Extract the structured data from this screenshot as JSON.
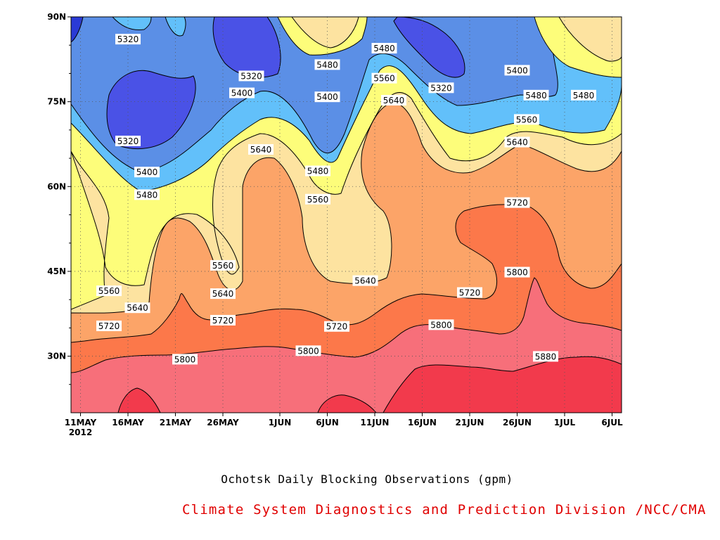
{
  "chart_data": {
    "type": "heatmap",
    "title": "Ochotsk Daily Blocking Observations (gpm)",
    "subtitle": "",
    "xlabel": "",
    "ylabel": "",
    "x_tick_labels": [
      "11MAY",
      "16MAY",
      "21MAY",
      "26MAY",
      "1JUN",
      "6JUN",
      "11JUN",
      "16JUN",
      "21JUN",
      "26JUN",
      "1JUL",
      "6JUL"
    ],
    "x_year_label": "2012",
    "x_range": [
      "2012-05-10",
      "2012-07-07"
    ],
    "y_tick_labels": [
      "30N",
      "45N",
      "60N",
      "75N",
      "90N"
    ],
    "y_range": [
      20,
      90
    ],
    "contour_levels": [
      5320,
      5400,
      5480,
      5560,
      5640,
      5720,
      5800,
      5880
    ],
    "fill_colors": {
      "below_5320": "#4a52e6",
      "5320_5400": "#5b8fe6",
      "5400_5480": "#62c0fa",
      "5480_5560": "#fdfd7a",
      "5560_5640": "#fde3a0",
      "5640_5720": "#fca468",
      "5720_5800": "#fc784a",
      "5800_5880": "#f76f7a",
      "above_5880": "#f23a4c",
      "top_left_corner": "#2a3ad6"
    },
    "contour_labels": [
      {
        "text": "5320",
        "date": "2012-05-16",
        "lat": 86
      },
      {
        "text": "5320",
        "date": "2012-05-16",
        "lat": 68
      },
      {
        "text": "5400",
        "date": "2012-05-18",
        "lat": 62.5
      },
      {
        "text": "5480",
        "date": "2012-05-18",
        "lat": 58.5
      },
      {
        "text": "5560",
        "date": "2012-05-14",
        "lat": 41.5
      },
      {
        "text": "5640",
        "date": "2012-05-17",
        "lat": 38.5
      },
      {
        "text": "5720",
        "date": "2012-05-14",
        "lat": 35.3
      },
      {
        "text": "5800",
        "date": "2012-05-22",
        "lat": 29.4
      },
      {
        "text": "5560",
        "date": "2012-05-26",
        "lat": 46
      },
      {
        "text": "5640",
        "date": "2012-05-26",
        "lat": 41
      },
      {
        "text": "5720",
        "date": "2012-05-26",
        "lat": 36.3
      },
      {
        "text": "5320",
        "date": "2012-05-29",
        "lat": 79.5
      },
      {
        "text": "5400",
        "date": "2012-05-28",
        "lat": 76.5
      },
      {
        "text": "5640",
        "date": "2012-05-30",
        "lat": 66.5
      },
      {
        "text": "5480",
        "date": "2012-06-06",
        "lat": 81.5
      },
      {
        "text": "5400",
        "date": "2012-06-06",
        "lat": 75.8
      },
      {
        "text": "5480",
        "date": "2012-06-05",
        "lat": 62.7
      },
      {
        "text": "5560",
        "date": "2012-06-05",
        "lat": 57.7
      },
      {
        "text": "5800",
        "date": "2012-06-04",
        "lat": 30.9
      },
      {
        "text": "5720",
        "date": "2012-06-07",
        "lat": 35.2
      },
      {
        "text": "5640",
        "date": "2012-06-10",
        "lat": 43.3
      },
      {
        "text": "5480",
        "date": "2012-06-12",
        "lat": 84.4
      },
      {
        "text": "5560",
        "date": "2012-06-12",
        "lat": 79.1
      },
      {
        "text": "5640",
        "date": "2012-06-13",
        "lat": 75.2
      },
      {
        "text": "5320",
        "date": "2012-06-18",
        "lat": 77.4
      },
      {
        "text": "5800",
        "date": "2012-06-18",
        "lat": 35.5
      },
      {
        "text": "5720",
        "date": "2012-06-21",
        "lat": 41.2
      },
      {
        "text": "5400",
        "date": "2012-06-26",
        "lat": 80.5
      },
      {
        "text": "5480",
        "date": "2012-06-28",
        "lat": 76.1
      },
      {
        "text": "5560",
        "date": "2012-06-27",
        "lat": 71.8
      },
      {
        "text": "5640",
        "date": "2012-06-26",
        "lat": 67.8
      },
      {
        "text": "5720",
        "date": "2012-06-26",
        "lat": 57.1
      },
      {
        "text": "5800",
        "date": "2012-06-26",
        "lat": 44.8
      },
      {
        "text": "5880",
        "date": "2012-06-29",
        "lat": 29.9
      },
      {
        "text": "5480",
        "date": "2012-07-03",
        "lat": 76.1
      }
    ]
  },
  "captions": {
    "title": "Ochotsk Daily Blocking Observations (gpm)",
    "credit": "Climate System Diagnostics and Prediction Division /NCC/CMA"
  }
}
